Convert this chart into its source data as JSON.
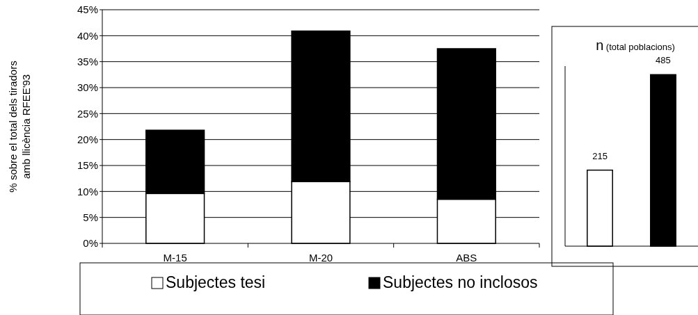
{
  "chart_data": [
    {
      "type": "bar",
      "stacked": true,
      "categories": [
        "M-15",
        "M-20",
        "ABS"
      ],
      "ylabel": "% sobre el total dels tiradors amb llicència RFEE'93",
      "ylim": [
        0,
        45
      ],
      "yticks": [
        {
          "value": 0,
          "label": "0%"
        },
        {
          "value": 5,
          "label": "5%"
        },
        {
          "value": 10,
          "label": "10%"
        },
        {
          "value": 15,
          "label": "15%"
        },
        {
          "value": 20,
          "label": "20%"
        },
        {
          "value": 25,
          "label": "25%"
        },
        {
          "value": 30,
          "label": "30%"
        },
        {
          "value": 35,
          "label": "35%"
        },
        {
          "value": 40,
          "label": "40%"
        },
        {
          "value": 45,
          "label": "45%"
        }
      ],
      "grid": "y",
      "legend": "bottom",
      "series": [
        {
          "name": "Subjectes tesi",
          "color": "#ffffff",
          "values": [
            9.6,
            11.9,
            8.5
          ]
        },
        {
          "name": "Subjectes no inclosos",
          "color": "#000000",
          "values": [
            12.2,
            29.0,
            29.0
          ]
        }
      ]
    },
    {
      "type": "bar",
      "title": "n (total poblacions)",
      "categories": [
        null,
        null
      ],
      "values": [
        215,
        485
      ],
      "colors": [
        "#ffffff",
        "#000000"
      ],
      "data_labels": true
    }
  ]
}
